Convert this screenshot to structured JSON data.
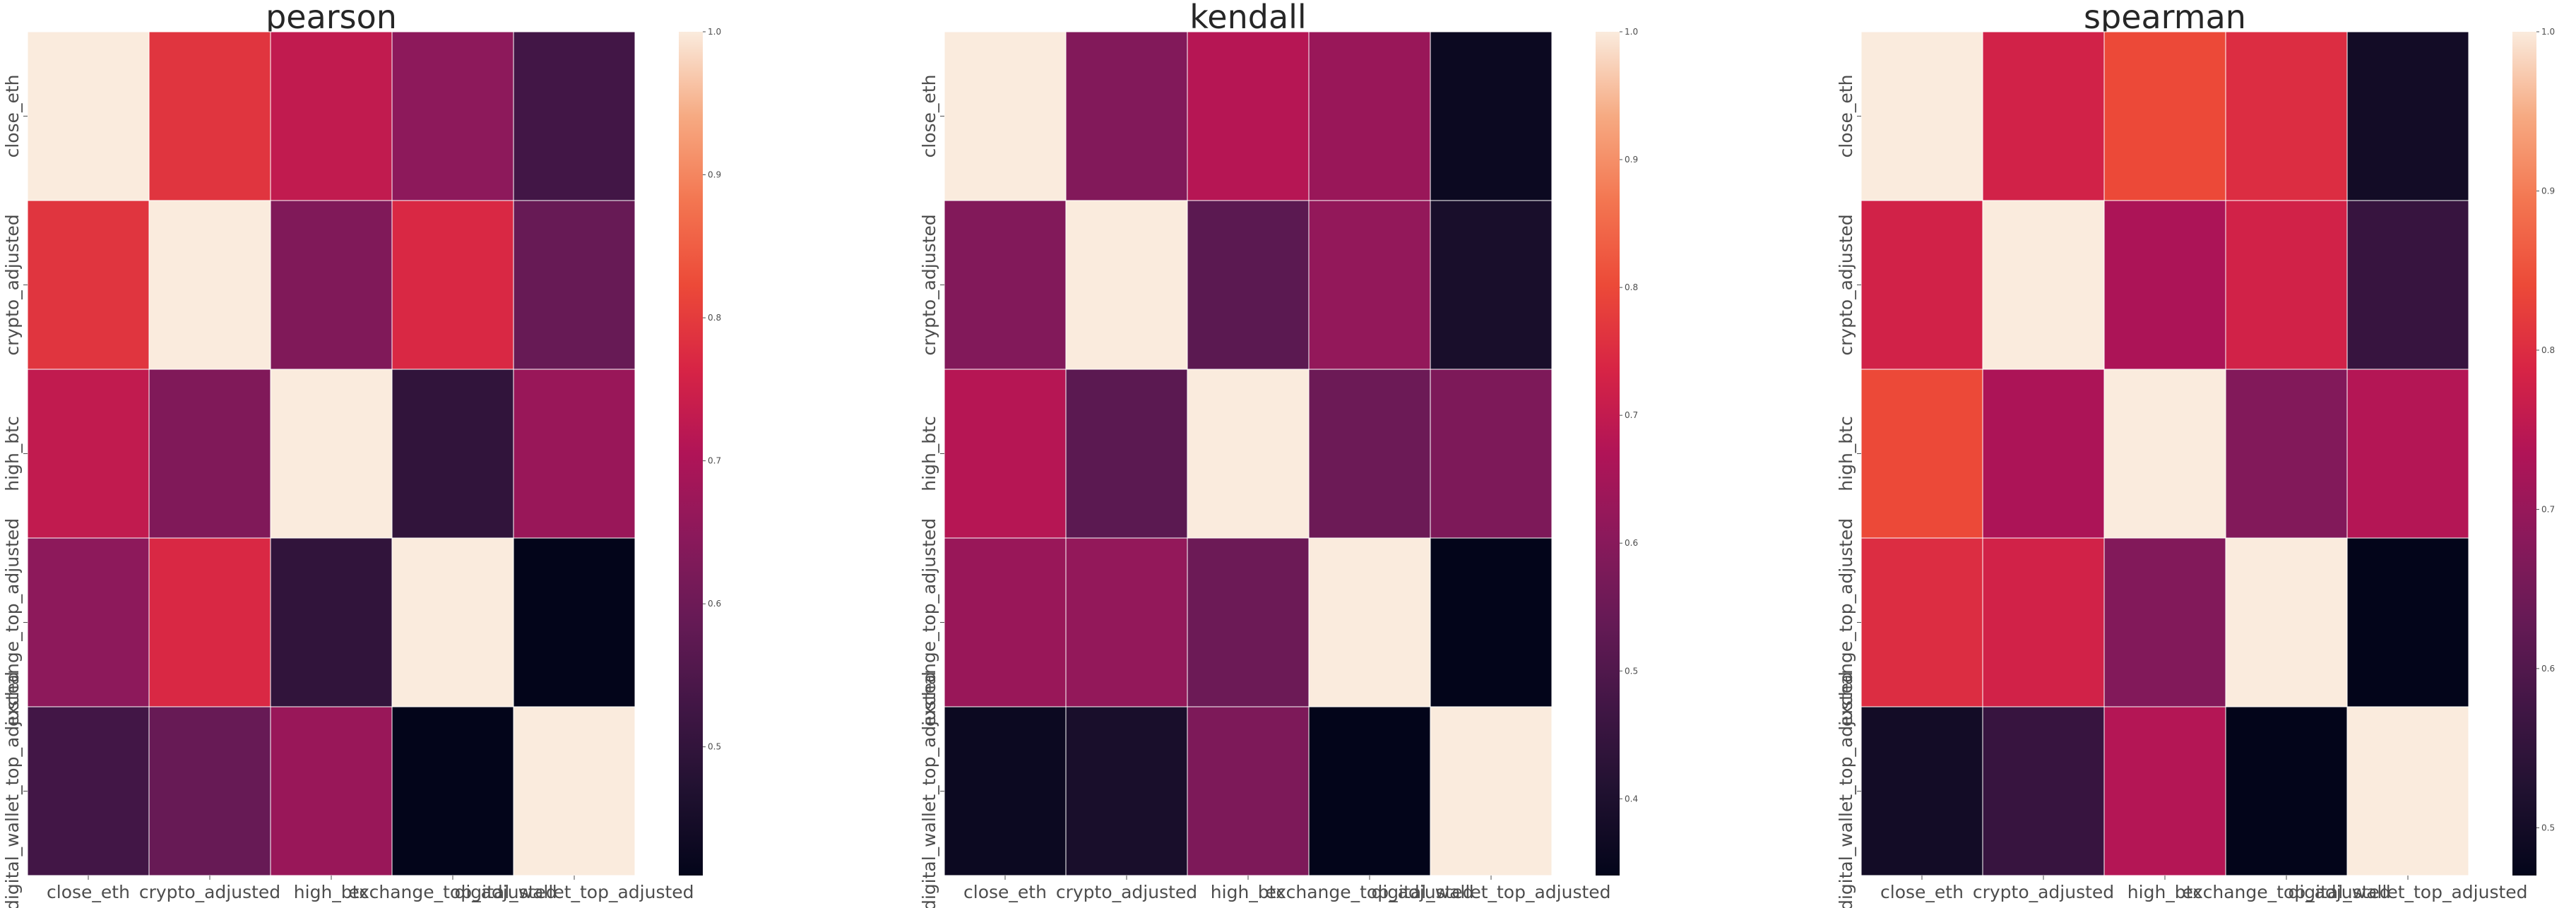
{
  "chart_data": [
    {
      "type": "heatmap",
      "title": "pearson",
      "rows": [
        "close_eth",
        "crypto_adjusted",
        "high_btc",
        "exchange_top_adjusted",
        "digital_wallet_top_adjusted"
      ],
      "cols": [
        "close_eth",
        "crypto_adjusted",
        "high_btc",
        "exchange_top_adjusted",
        "digital_wallet_top_adjusted"
      ],
      "values": [
        [
          1.0,
          0.79,
          0.73,
          0.65,
          0.53
        ],
        [
          0.79,
          1.0,
          0.63,
          0.77,
          0.59
        ],
        [
          0.73,
          0.63,
          1.0,
          0.5,
          0.67
        ],
        [
          0.65,
          0.77,
          0.5,
          1.0,
          0.41
        ],
        [
          0.53,
          0.59,
          0.67,
          0.41,
          1.0
        ]
      ],
      "colorbar": {
        "min": 0.41,
        "max": 1.0,
        "ticks": [
          "1.0",
          "0.9",
          "0.8",
          "0.7",
          "0.6",
          "0.5"
        ],
        "tick_values": [
          1.0,
          0.9,
          0.8,
          0.7,
          0.6,
          0.5
        ]
      }
    },
    {
      "type": "heatmap",
      "title": "kendall",
      "rows": [
        "close_eth",
        "crypto_adjusted",
        "high_btc",
        "exchange_top_adjusted",
        "digital_wallet_top_adjusted"
      ],
      "cols": [
        "close_eth",
        "crypto_adjusted",
        "high_btc",
        "exchange_top_adjusted",
        "digital_wallet_top_adjusted"
      ],
      "values": [
        [
          1.0,
          0.59,
          0.68,
          0.63,
          0.36
        ],
        [
          0.59,
          1.0,
          0.52,
          0.62,
          0.39
        ],
        [
          0.68,
          0.52,
          1.0,
          0.55,
          0.58
        ],
        [
          0.63,
          0.62,
          0.55,
          1.0,
          0.34
        ],
        [
          0.36,
          0.39,
          0.58,
          0.34,
          1.0
        ]
      ],
      "colorbar": {
        "min": 0.34,
        "max": 1.0,
        "ticks": [
          "1.0",
          "0.9",
          "0.8",
          "0.7",
          "0.6",
          "0.5",
          "0.4"
        ],
        "tick_values": [
          1.0,
          0.9,
          0.8,
          0.7,
          0.6,
          0.5,
          0.4
        ]
      }
    },
    {
      "type": "heatmap",
      "title": "spearman",
      "rows": [
        "close_eth",
        "crypto_adjusted",
        "high_btc",
        "exchange_top_adjusted",
        "digital_wallet_top_adjusted"
      ],
      "cols": [
        "close_eth",
        "crypto_adjusted",
        "high_btc",
        "exchange_top_adjusted",
        "digital_wallet_top_adjusted"
      ],
      "values": [
        [
          1.0,
          0.78,
          0.84,
          0.8,
          0.5
        ],
        [
          0.78,
          1.0,
          0.73,
          0.78,
          0.56
        ],
        [
          0.84,
          0.73,
          1.0,
          0.67,
          0.74
        ],
        [
          0.8,
          0.78,
          0.67,
          1.0,
          0.47
        ],
        [
          0.5,
          0.56,
          0.74,
          0.47,
          1.0
        ]
      ],
      "colorbar": {
        "min": 0.47,
        "max": 1.0,
        "ticks": [
          "1.0",
          "0.9",
          "0.8",
          "0.7",
          "0.6",
          "0.5"
        ],
        "tick_values": [
          1.0,
          0.9,
          0.8,
          0.7,
          0.6,
          0.5
        ]
      }
    }
  ]
}
